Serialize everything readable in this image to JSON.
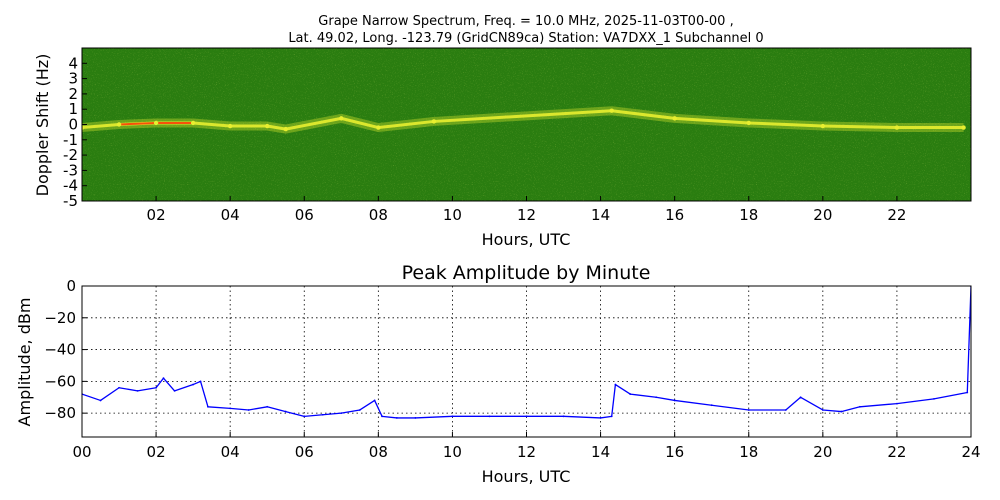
{
  "colors": {
    "spectrogram_background": "#2a7d10",
    "spectrogram_signal": "#e8ee30",
    "spectrogram_peak": "#ff2a00",
    "amplitude_line": "#0000ff"
  },
  "chart_data": [
    {
      "type": "heatmap",
      "title_line1": "Grape Narrow Spectrum, Freq. = 10.0 MHz, 2025-11-03T00-00 ,",
      "title_line2": "Lat.  49.02, Long. -123.79 (GridCN89ca) Station: VA7DXX_1 Subchannel 0",
      "xlabel": "Hours, UTC",
      "ylabel": "Doppler Shift (Hz)",
      "xlim": [
        0,
        24
      ],
      "ylim": [
        -5,
        5
      ],
      "x_ticks": [
        "02",
        "04",
        "06",
        "08",
        "10",
        "12",
        "14",
        "16",
        "18",
        "20",
        "22"
      ],
      "y_ticks": [
        "4",
        "3",
        "2",
        "1",
        "0",
        "-1",
        "-2",
        "-3",
        "-4",
        "-5"
      ],
      "grid": false,
      "signal_trace": [
        {
          "hour": 0.0,
          "doppler_hz": -0.2
        },
        {
          "hour": 1.0,
          "doppler_hz": 0.0
        },
        {
          "hour": 2.0,
          "doppler_hz": 0.1
        },
        {
          "hour": 3.0,
          "doppler_hz": 0.1
        },
        {
          "hour": 4.0,
          "doppler_hz": -0.1
        },
        {
          "hour": 5.0,
          "doppler_hz": -0.1
        },
        {
          "hour": 5.5,
          "doppler_hz": -0.3
        },
        {
          "hour": 7.0,
          "doppler_hz": 0.4
        },
        {
          "hour": 8.0,
          "doppler_hz": -0.2
        },
        {
          "hour": 9.5,
          "doppler_hz": 0.2
        },
        {
          "hour": 14.3,
          "doppler_hz": 0.9
        },
        {
          "hour": 16.0,
          "doppler_hz": 0.4
        },
        {
          "hour": 18.0,
          "doppler_hz": 0.1
        },
        {
          "hour": 20.0,
          "doppler_hz": -0.1
        },
        {
          "hour": 22.0,
          "doppler_hz": -0.2
        },
        {
          "hour": 23.8,
          "doppler_hz": -0.2
        }
      ]
    },
    {
      "type": "line",
      "title": "Peak Amplitude by Minute",
      "xlabel": "Hours, UTC",
      "ylabel": "Amplitude, dBm",
      "xlim": [
        0,
        24
      ],
      "ylim": [
        -95,
        0
      ],
      "x_ticks": [
        "00",
        "02",
        "04",
        "06",
        "08",
        "10",
        "12",
        "14",
        "16",
        "18",
        "20",
        "22",
        "24"
      ],
      "y_ticks": [
        "0",
        "−20",
        "−40",
        "−60",
        "−80"
      ],
      "grid": true,
      "x": [
        0.0,
        0.5,
        1.0,
        1.5,
        2.0,
        2.2,
        2.5,
        3.0,
        3.2,
        3.4,
        4.0,
        4.5,
        5.0,
        5.5,
        6.0,
        6.5,
        7.0,
        7.5,
        7.9,
        8.1,
        8.5,
        9.0,
        10.0,
        11.0,
        12.0,
        13.0,
        14.0,
        14.3,
        14.4,
        14.8,
        15.5,
        16.0,
        17.0,
        18.0,
        19.0,
        19.4,
        20.0,
        20.5,
        21.0,
        22.0,
        23.0,
        23.9,
        24.0
      ],
      "y": [
        -68,
        -72,
        -64,
        -66,
        -64,
        -58,
        -66,
        -62,
        -60,
        -76,
        -77,
        -78,
        -76,
        -79,
        -82,
        -81,
        -80,
        -78,
        -72,
        -82,
        -83,
        -83,
        -82,
        -82,
        -82,
        -82,
        -83,
        -82,
        -62,
        -68,
        -70,
        -72,
        -75,
        -78,
        -78,
        -70,
        -78,
        -79,
        -76,
        -74,
        -71,
        -67,
        0
      ]
    }
  ]
}
